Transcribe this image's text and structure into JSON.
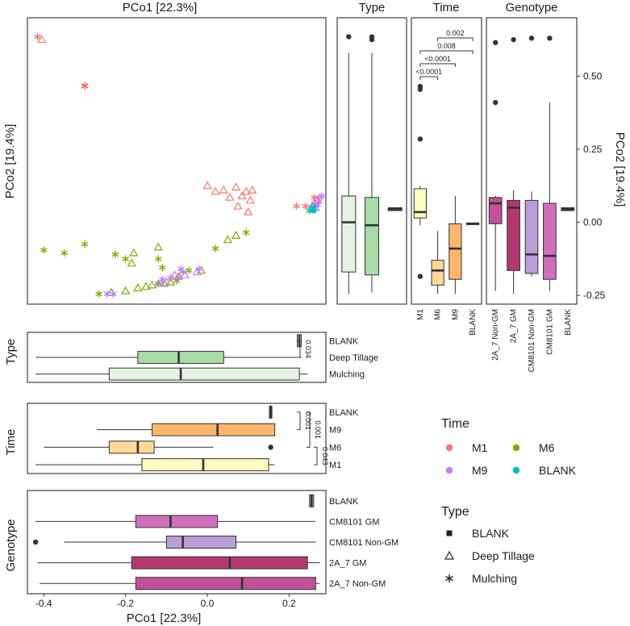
{
  "colors": {
    "time": {
      "M1": "#F8766D",
      "M6": "#7CAE00",
      "M9": "#C77CFF",
      "BLANK": "#00BFC4"
    },
    "type": {
      "BLANK": "#d2ecd0",
      "Deep Tillage": "#a8dba6",
      "Mulching": "#e4f3e1"
    },
    "time_box": {
      "BLANK": "#e4e4e4",
      "M9": "#fbb56d",
      "M6": "#fdd898",
      "M1": "#fefcc0"
    },
    "genotype_box": {
      "BLANK": "#cfa5d4",
      "CM8101 GM": "#cf6fba",
      "CM8101 Non-GM": "#bb9ed8",
      "2A_7 GM": "#b3386f",
      "2A_7 Non-GM": "#c15198"
    }
  },
  "chart_data": {
    "type": "scatter",
    "title": "PCo1 [22.3%]",
    "xlabel": "PCo1 [22.3%]",
    "ylabel": "PCo2 [19.4%]",
    "xlim": [
      -0.44,
      0.29
    ],
    "ylim": [
      -0.28,
      0.7
    ],
    "xticks": [
      "-0.4",
      "-0.2",
      "0.0",
      "0.2"
    ],
    "yticks": [
      "0.50",
      "0.25",
      "0.00",
      "-0.25"
    ],
    "ytick_values": [
      0.5,
      0.25,
      0.0,
      -0.25
    ],
    "xtick_values": [
      -0.4,
      -0.2,
      0.0,
      0.2
    ],
    "points": [
      {
        "x": -0.415,
        "y": 0.635,
        "time": "M1",
        "type": "Mulching"
      },
      {
        "x": -0.405,
        "y": 0.625,
        "time": "M1",
        "type": "Deep Tillage"
      },
      {
        "x": -0.3,
        "y": 0.465,
        "time": "M1",
        "type": "Mulching"
      },
      {
        "x": -0.3,
        "y": 0.468,
        "time": "M1",
        "type": "Mulching"
      },
      {
        "x": 0.0,
        "y": 0.125,
        "time": "M1",
        "type": "Deep Tillage"
      },
      {
        "x": 0.02,
        "y": 0.105,
        "time": "M1",
        "type": "Deep Tillage"
      },
      {
        "x": 0.04,
        "y": 0.11,
        "time": "M1",
        "type": "Deep Tillage"
      },
      {
        "x": 0.055,
        "y": 0.085,
        "time": "M1",
        "type": "Deep Tillage"
      },
      {
        "x": 0.07,
        "y": 0.12,
        "time": "M1",
        "type": "Deep Tillage"
      },
      {
        "x": 0.085,
        "y": 0.09,
        "time": "M1",
        "type": "Deep Tillage"
      },
      {
        "x": 0.095,
        "y": 0.105,
        "time": "M1",
        "type": "Deep Tillage"
      },
      {
        "x": 0.105,
        "y": 0.075,
        "time": "M1",
        "type": "Deep Tillage"
      },
      {
        "x": 0.11,
        "y": 0.11,
        "time": "M1",
        "type": "Deep Tillage"
      },
      {
        "x": 0.075,
        "y": 0.055,
        "time": "M1",
        "type": "Deep Tillage"
      },
      {
        "x": 0.1,
        "y": 0.035,
        "time": "M1",
        "type": "Deep Tillage"
      },
      {
        "x": 0.218,
        "y": 0.055,
        "time": "M1",
        "type": "Mulching"
      },
      {
        "x": 0.24,
        "y": 0.055,
        "time": "M1",
        "type": "Mulching"
      },
      {
        "x": 0.262,
        "y": 0.085,
        "time": "M1",
        "type": "Mulching"
      },
      {
        "x": 0.265,
        "y": 0.06,
        "time": "M1",
        "type": "Mulching"
      },
      {
        "x": 0.255,
        "y": 0.05,
        "time": "M1",
        "type": "Mulching"
      },
      {
        "x": 0.27,
        "y": 0.075,
        "time": "M1",
        "type": "Deep Tillage"
      },
      {
        "x": -0.4,
        "y": -0.095,
        "time": "M6",
        "type": "Mulching"
      },
      {
        "x": -0.35,
        "y": -0.105,
        "time": "M6",
        "type": "Mulching"
      },
      {
        "x": -0.3,
        "y": -0.075,
        "time": "M6",
        "type": "Mulching"
      },
      {
        "x": -0.225,
        "y": -0.11,
        "time": "M6",
        "type": "Mulching"
      },
      {
        "x": -0.2,
        "y": -0.125,
        "time": "M6",
        "type": "Mulching"
      },
      {
        "x": -0.18,
        "y": -0.105,
        "time": "M6",
        "type": "Deep Tillage"
      },
      {
        "x": -0.185,
        "y": -0.14,
        "time": "M6",
        "type": "Deep Tillage"
      },
      {
        "x": -0.12,
        "y": -0.085,
        "time": "M6",
        "type": "Deep Tillage"
      },
      {
        "x": -0.12,
        "y": -0.125,
        "time": "M6",
        "type": "Mulching"
      },
      {
        "x": -0.11,
        "y": -0.155,
        "time": "M6",
        "type": "Mulching"
      },
      {
        "x": -0.07,
        "y": -0.185,
        "time": "M6",
        "type": "Deep Tillage"
      },
      {
        "x": -0.045,
        "y": -0.165,
        "time": "M6",
        "type": "Mulching"
      },
      {
        "x": 0.02,
        "y": -0.09,
        "time": "M6",
        "type": "Mulching"
      },
      {
        "x": 0.05,
        "y": -0.06,
        "time": "M6",
        "type": "Deep Tillage"
      },
      {
        "x": 0.07,
        "y": -0.045,
        "time": "M6",
        "type": "Deep Tillage"
      },
      {
        "x": 0.095,
        "y": -0.035,
        "time": "M6",
        "type": "Mulching"
      },
      {
        "x": -0.265,
        "y": -0.245,
        "time": "M6",
        "type": "Mulching"
      },
      {
        "x": -0.235,
        "y": -0.24,
        "time": "M6",
        "type": "Deep Tillage"
      },
      {
        "x": -0.2,
        "y": -0.235,
        "time": "M6",
        "type": "Deep Tillage"
      },
      {
        "x": -0.17,
        "y": -0.225,
        "time": "M6",
        "type": "Deep Tillage"
      },
      {
        "x": -0.15,
        "y": -0.22,
        "time": "M6",
        "type": "Deep Tillage"
      },
      {
        "x": -0.135,
        "y": -0.215,
        "time": "M6",
        "type": "Deep Tillage"
      },
      {
        "x": -0.12,
        "y": -0.21,
        "time": "M6",
        "type": "Mulching"
      },
      {
        "x": -0.105,
        "y": -0.21,
        "time": "M6",
        "type": "Deep Tillage"
      },
      {
        "x": -0.09,
        "y": -0.205,
        "time": "M6",
        "type": "Deep Tillage"
      },
      {
        "x": -0.075,
        "y": -0.2,
        "time": "M6",
        "type": "Mulching"
      },
      {
        "x": -0.015,
        "y": -0.165,
        "time": "M6",
        "type": "Deep Tillage"
      },
      {
        "x": -0.245,
        "y": -0.245,
        "time": "M9",
        "type": "Mulching"
      },
      {
        "x": -0.23,
        "y": -0.245,
        "time": "M9",
        "type": "Mulching"
      },
      {
        "x": -0.12,
        "y": -0.21,
        "time": "M9",
        "type": "Deep Tillage"
      },
      {
        "x": -0.11,
        "y": -0.195,
        "time": "M9",
        "type": "Mulching"
      },
      {
        "x": -0.1,
        "y": -0.205,
        "time": "M9",
        "type": "Deep Tillage"
      },
      {
        "x": -0.09,
        "y": -0.19,
        "time": "M9",
        "type": "Mulching"
      },
      {
        "x": -0.08,
        "y": -0.18,
        "time": "M9",
        "type": "Deep Tillage"
      },
      {
        "x": -0.07,
        "y": -0.19,
        "time": "M9",
        "type": "Mulching"
      },
      {
        "x": -0.065,
        "y": -0.16,
        "time": "M9",
        "type": "Mulching"
      },
      {
        "x": -0.06,
        "y": -0.17,
        "time": "M9",
        "type": "Mulching"
      },
      {
        "x": -0.055,
        "y": -0.18,
        "time": "M9",
        "type": "Deep Tillage"
      },
      {
        "x": -0.02,
        "y": -0.16,
        "time": "M9",
        "type": "Mulching"
      },
      {
        "x": -0.025,
        "y": -0.17,
        "time": "M9",
        "type": "Deep Tillage"
      },
      {
        "x": 0.275,
        "y": 0.085,
        "time": "M9",
        "type": "Mulching"
      },
      {
        "x": 0.28,
        "y": 0.09,
        "time": "M9",
        "type": "Mulching"
      },
      {
        "x": 0.272,
        "y": 0.07,
        "time": "M9",
        "type": "Mulching"
      },
      {
        "x": 0.27,
        "y": 0.06,
        "time": "M9",
        "type": "Mulching"
      },
      {
        "x": 0.26,
        "y": 0.065,
        "time": "M9",
        "type": "Deep Tillage"
      },
      {
        "x": 0.265,
        "y": 0.05,
        "time": "M9",
        "type": "Deep Tillage"
      },
      {
        "x": 0.25,
        "y": 0.04,
        "time": "BLANK",
        "type": "Mulching"
      },
      {
        "x": 0.255,
        "y": 0.045,
        "time": "BLANK",
        "type": "Deep Tillage"
      },
      {
        "x": 0.26,
        "y": 0.04,
        "time": "BLANK",
        "type": "BLANK"
      },
      {
        "x": 0.262,
        "y": 0.048,
        "time": "BLANK",
        "type": "Mulching"
      },
      {
        "x": 0.258,
        "y": 0.052,
        "time": "BLANK",
        "type": "Deep Tillage"
      }
    ],
    "panels": {
      "type_x": {
        "title": "Type",
        "categories": [
          "BLANK",
          "Deep Tillage",
          "Mulching"
        ],
        "stats": [
          {
            "q1": 0.22,
            "med": 0.225,
            "q3": 0.23,
            "lo": 0.22,
            "hi": 0.23,
            "out": []
          },
          {
            "q1": -0.17,
            "med": -0.07,
            "q3": 0.04,
            "lo": -0.42,
            "hi": 0.23,
            "out": []
          },
          {
            "q1": -0.24,
            "med": -0.065,
            "q3": 0.225,
            "lo": -0.42,
            "hi": 0.245,
            "out": []
          }
        ],
        "brackets": [
          {
            "from": "BLANK",
            "to": "Deep Tillage",
            "p": "0.034"
          }
        ]
      },
      "time_x": {
        "title": "Time",
        "categories": [
          "BLANK",
          "M9",
          "M6",
          "M1"
        ],
        "stats": [
          {
            "q1": 0.152,
            "med": 0.155,
            "q3": 0.158,
            "lo": 0.152,
            "hi": 0.158,
            "out": []
          },
          {
            "q1": -0.135,
            "med": 0.025,
            "q3": 0.165,
            "lo": -0.27,
            "hi": 0.165,
            "out": []
          },
          {
            "q1": -0.24,
            "med": -0.17,
            "q3": -0.13,
            "lo": -0.4,
            "hi": 0.015,
            "out": [
              0.155
            ]
          },
          {
            "q1": -0.16,
            "med": -0.01,
            "q3": 0.15,
            "lo": -0.42,
            "hi": 0.165,
            "out": []
          }
        ],
        "brackets": [
          {
            "from": "BLANK",
            "to": "M9",
            "p": "0.001"
          },
          {
            "from": "BLANK",
            "to": "M6",
            "p": "0.001"
          },
          {
            "from": "M6",
            "to": "M1",
            "p": "0.043"
          }
        ]
      },
      "genotype_x": {
        "title": "Genotype",
        "categories": [
          "BLANK",
          "CM8101 GM",
          "CM8101 Non-GM",
          "2A_7 GM",
          "2A_7 Non-GM"
        ],
        "stats": [
          {
            "q1": 0.25,
            "med": 0.255,
            "q3": 0.26,
            "lo": 0.25,
            "hi": 0.26,
            "out": []
          },
          {
            "q1": -0.175,
            "med": -0.09,
            "q3": 0.025,
            "lo": -0.42,
            "hi": 0.265,
            "out": []
          },
          {
            "q1": -0.1,
            "med": -0.06,
            "q3": 0.07,
            "lo": -0.35,
            "hi": 0.265,
            "out": [
              -0.42
            ]
          },
          {
            "q1": -0.185,
            "med": 0.055,
            "q3": 0.245,
            "lo": -0.415,
            "hi": 0.275,
            "out": []
          },
          {
            "q1": -0.175,
            "med": 0.085,
            "q3": 0.265,
            "lo": -0.41,
            "hi": 0.275,
            "out": []
          }
        ]
      },
      "type_y": {
        "title": "Type",
        "categories": [
          "Deep Tillage",
          "Mulching",
          "BLANK"
        ],
        "stats": [
          {
            "q1": -0.17,
            "med": 0.0,
            "q3": 0.09,
            "lo": -0.245,
            "hi": 0.58,
            "out": [
              0.635
            ]
          },
          {
            "q1": -0.18,
            "med": -0.01,
            "q3": 0.085,
            "lo": -0.24,
            "hi": 0.58,
            "out": [
              0.625,
              0.635
            ]
          },
          {
            "q1": 0.04,
            "med": 0.045,
            "q3": 0.05,
            "lo": 0.04,
            "hi": 0.05,
            "out": []
          }
        ]
      },
      "time_y": {
        "title": "Time",
        "categories": [
          "M1",
          "M6",
          "M9",
          "BLANK"
        ],
        "stats": [
          {
            "q1": 0.015,
            "med": 0.035,
            "q3": 0.115,
            "lo": -0.01,
            "hi": 0.125,
            "out": [
              0.465,
              0.455,
              0.285,
              -0.185
            ]
          },
          {
            "q1": -0.215,
            "med": -0.165,
            "q3": -0.13,
            "lo": -0.245,
            "hi": -0.03,
            "out": []
          },
          {
            "q1": -0.195,
            "med": -0.09,
            "q3": -0.005,
            "lo": -0.245,
            "hi": 0.09,
            "out": []
          },
          {
            "q1": -0.008,
            "med": -0.005,
            "q3": -0.002,
            "lo": -0.008,
            "hi": -0.002,
            "out": []
          }
        ],
        "brackets": [
          {
            "from": "M1",
            "to": "M6",
            "p": "<0.0001"
          },
          {
            "from": "M1",
            "to": "M9",
            "p": "<0.0001"
          },
          {
            "from": "M1",
            "to": "BLANK",
            "p": "0.008"
          },
          {
            "from": "M6",
            "to": "BLANK",
            "p": "0.002"
          }
        ]
      },
      "genotype_y": {
        "title": "Genotype",
        "categories": [
          "2A_7 Non-GM",
          "2A_7 GM",
          "CM8101 Non-GM",
          "CM8101 GM",
          "BLANK"
        ],
        "stats": [
          {
            "q1": -0.005,
            "med": 0.065,
            "q3": 0.085,
            "lo": -0.235,
            "hi": 0.09,
            "out": [
              0.615,
              0.41
            ]
          },
          {
            "q1": -0.165,
            "med": 0.05,
            "q3": 0.075,
            "lo": -0.245,
            "hi": 0.11,
            "out": [
              0.625
            ]
          },
          {
            "q1": -0.175,
            "med": -0.11,
            "q3": 0.075,
            "lo": -0.185,
            "hi": 0.105,
            "out": [
              0.63
            ]
          },
          {
            "q1": -0.195,
            "med": -0.115,
            "q3": 0.065,
            "lo": -0.235,
            "hi": 0.41,
            "out": [
              0.63
            ]
          },
          {
            "q1": 0.04,
            "med": 0.045,
            "q3": 0.05,
            "lo": 0.04,
            "hi": 0.05,
            "out": []
          }
        ]
      }
    },
    "legend": {
      "time_title": "Time",
      "time_items": [
        "M1",
        "M6",
        "M9",
        "BLANK"
      ],
      "type_title": "Type",
      "type_items": [
        "BLANK",
        "Deep Tillage",
        "Mulching"
      ]
    }
  }
}
